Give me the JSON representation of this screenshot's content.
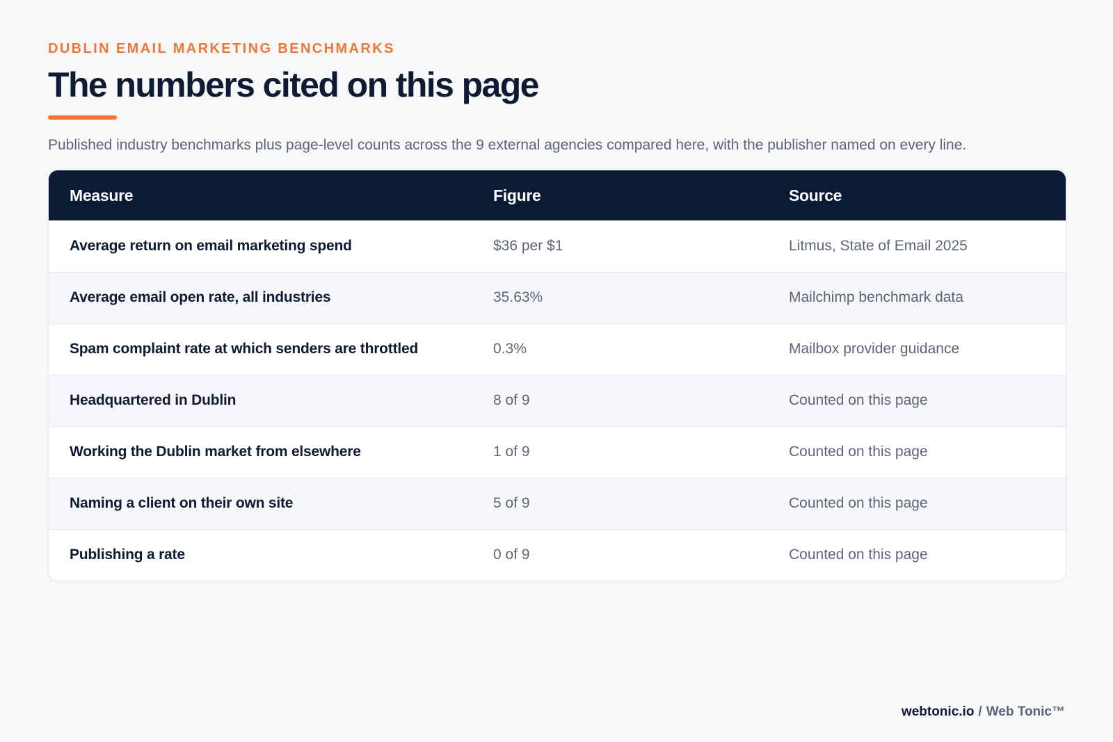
{
  "header": {
    "eyebrow": "DUBLIN EMAIL MARKETING BENCHMARKS",
    "title": "The numbers cited on this page",
    "subtitle": "Published industry benchmarks plus page-level counts across the 9 external agencies compared here, with the publisher named on every line."
  },
  "table": {
    "columns": [
      "Measure",
      "Figure",
      "Source"
    ],
    "rows": [
      {
        "measure": "Average return on email marketing spend",
        "figure": "$36 per $1",
        "source": "Litmus, State of Email 2025"
      },
      {
        "measure": "Average email open rate, all industries",
        "figure": "35.63%",
        "source": "Mailchimp benchmark data"
      },
      {
        "measure": "Spam complaint rate at which senders are throttled",
        "figure": "0.3%",
        "source": "Mailbox provider guidance"
      },
      {
        "measure": "Headquartered in Dublin",
        "figure": "8 of 9",
        "source": "Counted on this page"
      },
      {
        "measure": "Working the Dublin market from elsewhere",
        "figure": "1 of 9",
        "source": "Counted on this page"
      },
      {
        "measure": "Naming a client on their own site",
        "figure": "5 of 9",
        "source": "Counted on this page"
      },
      {
        "measure": "Publishing a rate",
        "figure": "0 of 9",
        "source": "Counted on this page"
      }
    ]
  },
  "footer": {
    "domain": "webtonic.io",
    "separator": "/",
    "brand": "Web Tonic™"
  },
  "colors": {
    "accent": "#ef7634",
    "header_bg": "#0b1a35",
    "text_dark": "#0f1b33",
    "text_muted": "#5b6577",
    "page_bg": "#f6f8fa"
  }
}
